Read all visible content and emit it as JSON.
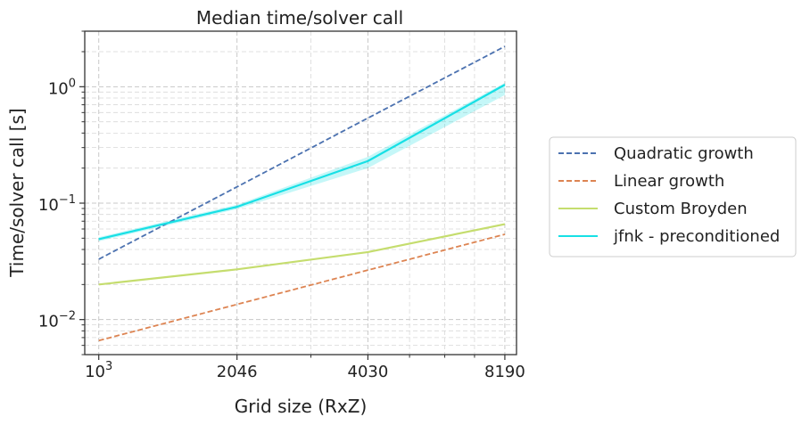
{
  "chart_data": {
    "type": "line",
    "title": "Median time/solver call",
    "xlabel": "Grid size (RxZ)",
    "ylabel": "Time/solver call [s]",
    "x_scale": "log",
    "y_scale": "log",
    "xlim": [
      930,
      8700
    ],
    "ylim": [
      0.005,
      3.0
    ],
    "x_ticks": [
      1000,
      2046,
      4030,
      8190
    ],
    "x_tick_labels": [
      "10^3",
      "2046",
      "4030",
      "8190"
    ],
    "x_minor_ticks": [
      3000,
      5000,
      6000,
      7000
    ],
    "y_ticks": [
      0.01,
      0.1,
      1.0
    ],
    "y_tick_labels": [
      "10^-2",
      "10^-1",
      "10^0"
    ],
    "grid": true,
    "legend_position": "right-outside",
    "x": [
      1000,
      2046,
      4030,
      8190
    ],
    "series": [
      {
        "name": "Quadratic growth",
        "values": [
          0.033,
          0.138,
          0.538,
          2.22
        ],
        "color": "#4c72b0",
        "style": "dashed"
      },
      {
        "name": "Linear growth",
        "values": [
          0.0066,
          0.0135,
          0.0266,
          0.054
        ],
        "color": "#dd8452",
        "style": "dashed"
      },
      {
        "name": "Custom Broyden",
        "values": [
          0.02,
          0.027,
          0.038,
          0.066
        ],
        "color": "#c5dd6e",
        "style": "solid"
      },
      {
        "name": "jfnk - preconditioned",
        "values": [
          0.049,
          0.093,
          0.23,
          1.04
        ],
        "color": "#17e0e5",
        "style": "solid",
        "band": {
          "lower": [
            0.047,
            0.089,
            0.2,
            0.85
          ],
          "upper": [
            0.051,
            0.097,
            0.25,
            1.08
          ]
        }
      }
    ]
  }
}
